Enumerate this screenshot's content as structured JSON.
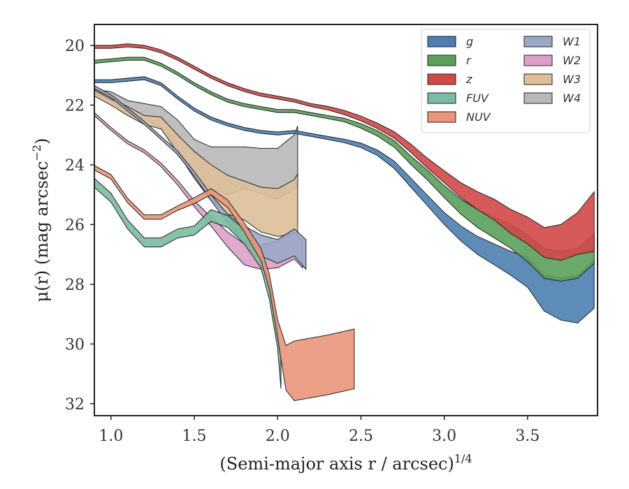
{
  "chart_data": {
    "type": "area",
    "xlabel": "(Semi-major axis r / arcsec)",
    "xlabel_sup": "1/4",
    "ylabel": "μ(r) (mag arcsec",
    "ylabel_sup": "−2",
    "ylabel_end": ")",
    "xlim": [
      0.9,
      3.92
    ],
    "ylim": [
      32.4,
      19.3
    ],
    "y_inverted": true,
    "x_ticks": [
      1.0,
      1.5,
      2.0,
      2.5,
      3.0,
      3.5
    ],
    "x_tick_labels": [
      "1.0",
      "1.5",
      "2.0",
      "2.5",
      "3.0",
      "3.5"
    ],
    "y_ticks": [
      20,
      22,
      24,
      26,
      28,
      30,
      32
    ],
    "y_tick_labels": [
      "20",
      "22",
      "24",
      "26",
      "28",
      "30",
      "32"
    ],
    "grid": false,
    "legend_position": "top-right",
    "legend_columns": 2,
    "series": [
      {
        "name": "g",
        "label": "g",
        "color": "#4c7fb0",
        "points": [
          [
            0.9,
            21.2
          ],
          [
            1.0,
            21.2
          ],
          [
            1.1,
            21.15
          ],
          [
            1.2,
            21.1
          ],
          [
            1.3,
            21.3
          ],
          [
            1.4,
            21.75
          ],
          [
            1.5,
            22.15
          ],
          [
            1.6,
            22.45
          ],
          [
            1.7,
            22.65
          ],
          [
            1.8,
            22.8
          ],
          [
            1.9,
            22.9
          ],
          [
            2.0,
            22.95
          ],
          [
            2.1,
            22.9
          ],
          [
            2.2,
            23.0
          ],
          [
            2.3,
            23.1
          ],
          [
            2.4,
            23.2
          ],
          [
            2.5,
            23.35
          ],
          [
            2.6,
            23.6
          ],
          [
            2.7,
            24.0
          ],
          [
            2.8,
            24.6
          ],
          [
            2.9,
            25.2
          ],
          [
            3.0,
            25.8
          ],
          [
            3.1,
            26.3
          ],
          [
            3.2,
            26.7
          ],
          [
            3.3,
            27.0
          ],
          [
            3.4,
            27.3
          ],
          [
            3.5,
            27.6
          ],
          [
            3.6,
            28.3
          ],
          [
            3.7,
            28.5
          ],
          [
            3.8,
            28.5
          ],
          [
            3.9,
            28.0
          ]
        ],
        "width": [
          0.1,
          0.1,
          0.1,
          0.1,
          0.1,
          0.1,
          0.1,
          0.1,
          0.1,
          0.1,
          0.1,
          0.1,
          0.1,
          0.1,
          0.1,
          0.12,
          0.15,
          0.18,
          0.25,
          0.3,
          0.35,
          0.4,
          0.5,
          0.6,
          0.7,
          0.8,
          1.0,
          1.2,
          1.4,
          1.6,
          1.6
        ]
      },
      {
        "name": "r",
        "label": "r",
        "color": "#5aa05a",
        "points": [
          [
            0.9,
            20.55
          ],
          [
            1.0,
            20.5
          ],
          [
            1.1,
            20.45
          ],
          [
            1.2,
            20.45
          ],
          [
            1.3,
            20.65
          ],
          [
            1.4,
            20.95
          ],
          [
            1.5,
            21.3
          ],
          [
            1.6,
            21.6
          ],
          [
            1.7,
            21.85
          ],
          [
            1.8,
            22.0
          ],
          [
            1.9,
            22.1
          ],
          [
            2.0,
            22.2
          ],
          [
            2.1,
            22.2
          ],
          [
            2.2,
            22.3
          ],
          [
            2.3,
            22.4
          ],
          [
            2.4,
            22.5
          ],
          [
            2.5,
            22.7
          ],
          [
            2.6,
            22.95
          ],
          [
            2.7,
            23.3
          ],
          [
            2.8,
            23.85
          ],
          [
            2.9,
            24.35
          ],
          [
            3.0,
            24.9
          ],
          [
            3.1,
            25.4
          ],
          [
            3.2,
            25.8
          ],
          [
            3.3,
            26.1
          ],
          [
            3.4,
            26.4
          ],
          [
            3.5,
            26.8
          ],
          [
            3.6,
            27.3
          ],
          [
            3.7,
            27.4
          ],
          [
            3.8,
            27.3
          ],
          [
            3.9,
            26.8
          ]
        ],
        "width": [
          0.1,
          0.1,
          0.1,
          0.1,
          0.1,
          0.1,
          0.1,
          0.1,
          0.1,
          0.1,
          0.1,
          0.1,
          0.1,
          0.1,
          0.1,
          0.12,
          0.15,
          0.18,
          0.22,
          0.28,
          0.33,
          0.4,
          0.5,
          0.6,
          0.7,
          0.8,
          0.9,
          1.0,
          1.0,
          1.0,
          1.0
        ]
      },
      {
        "name": "z",
        "label": "z",
        "color": "#d14848",
        "points": [
          [
            0.9,
            20.05
          ],
          [
            1.0,
            20.05
          ],
          [
            1.1,
            20.0
          ],
          [
            1.2,
            20.05
          ],
          [
            1.3,
            20.2
          ],
          [
            1.4,
            20.45
          ],
          [
            1.5,
            20.75
          ],
          [
            1.6,
            21.05
          ],
          [
            1.7,
            21.3
          ],
          [
            1.8,
            21.5
          ],
          [
            1.9,
            21.65
          ],
          [
            2.0,
            21.75
          ],
          [
            2.1,
            21.85
          ],
          [
            2.2,
            22.0
          ],
          [
            2.3,
            22.1
          ],
          [
            2.4,
            22.25
          ],
          [
            2.5,
            22.45
          ],
          [
            2.6,
            22.7
          ],
          [
            2.7,
            23.0
          ],
          [
            2.8,
            23.45
          ],
          [
            2.9,
            23.95
          ],
          [
            3.0,
            24.4
          ],
          [
            3.1,
            24.85
          ],
          [
            3.2,
            25.2
          ],
          [
            3.3,
            25.5
          ],
          [
            3.4,
            25.9
          ],
          [
            3.5,
            26.2
          ],
          [
            3.6,
            26.6
          ],
          [
            3.7,
            26.6
          ],
          [
            3.8,
            26.3
          ],
          [
            3.9,
            25.9
          ]
        ],
        "width": [
          0.1,
          0.1,
          0.1,
          0.1,
          0.1,
          0.1,
          0.1,
          0.1,
          0.1,
          0.1,
          0.1,
          0.1,
          0.1,
          0.1,
          0.12,
          0.14,
          0.16,
          0.18,
          0.22,
          0.28,
          0.33,
          0.4,
          0.5,
          0.6,
          0.7,
          0.8,
          0.9,
          1.0,
          1.2,
          1.4,
          2.0
        ]
      },
      {
        "name": "FUV",
        "label": "FUV",
        "color": "#7bbba0",
        "points": [
          [
            0.9,
            24.6
          ],
          [
            1.0,
            25.1
          ],
          [
            1.1,
            26.0
          ],
          [
            1.2,
            26.6
          ],
          [
            1.3,
            26.6
          ],
          [
            1.4,
            26.3
          ],
          [
            1.5,
            26.2
          ],
          [
            1.6,
            25.7
          ],
          [
            1.7,
            25.9
          ],
          [
            1.8,
            26.4
          ],
          [
            1.9,
            27.2
          ],
          [
            1.95,
            28.2
          ],
          [
            2.0,
            29.8
          ],
          [
            2.02,
            31.0
          ]
        ],
        "width": [
          0.3,
          0.3,
          0.3,
          0.3,
          0.3,
          0.3,
          0.3,
          0.4,
          0.4,
          0.5,
          0.5,
          0.6,
          0.7,
          1.0
        ]
      },
      {
        "name": "NUV",
        "label": "NUV",
        "color": "#e9967a",
        "points": [
          [
            0.9,
            24.1
          ],
          [
            1.0,
            24.4
          ],
          [
            1.1,
            25.2
          ],
          [
            1.2,
            25.75
          ],
          [
            1.3,
            25.75
          ],
          [
            1.4,
            25.45
          ],
          [
            1.5,
            25.2
          ],
          [
            1.6,
            24.9
          ],
          [
            1.7,
            25.3
          ],
          [
            1.8,
            26.1
          ],
          [
            1.9,
            27.0
          ],
          [
            1.95,
            27.9
          ],
          [
            2.0,
            29.5
          ],
          [
            2.05,
            30.8
          ],
          [
            2.1,
            30.9
          ],
          [
            2.3,
            30.7
          ],
          [
            2.46,
            30.5
          ]
        ],
        "width": [
          0.15,
          0.15,
          0.15,
          0.15,
          0.15,
          0.15,
          0.2,
          0.2,
          0.25,
          0.3,
          0.4,
          0.5,
          0.6,
          1.5,
          2.0,
          2.0,
          2.0
        ]
      },
      {
        "name": "W1",
        "label": "W1",
        "color": "#9aa8c8",
        "points": [
          [
            0.9,
            21.4
          ],
          [
            1.0,
            21.7
          ],
          [
            1.1,
            22.15
          ],
          [
            1.2,
            22.6
          ],
          [
            1.3,
            23.1
          ],
          [
            1.4,
            23.6
          ],
          [
            1.5,
            24.3
          ],
          [
            1.6,
            25.1
          ],
          [
            1.7,
            25.8
          ],
          [
            1.8,
            26.3
          ],
          [
            1.9,
            26.7
          ],
          [
            2.0,
            26.9
          ],
          [
            2.1,
            26.6
          ],
          [
            2.17,
            27.0
          ]
        ],
        "width": [
          0.1,
          0.1,
          0.1,
          0.1,
          0.1,
          0.12,
          0.15,
          0.2,
          0.3,
          0.5,
          0.7,
          0.8,
          0.9,
          1.0
        ]
      },
      {
        "name": "W2",
        "label": "W2",
        "color": "#dda0c8",
        "points": [
          [
            0.9,
            22.3
          ],
          [
            1.0,
            22.8
          ],
          [
            1.1,
            23.25
          ],
          [
            1.2,
            23.55
          ],
          [
            1.3,
            24.0
          ],
          [
            1.4,
            24.6
          ],
          [
            1.5,
            25.3
          ],
          [
            1.6,
            25.9
          ],
          [
            1.7,
            26.5
          ],
          [
            1.8,
            27.0
          ],
          [
            1.9,
            27.1
          ],
          [
            2.0,
            27.0
          ],
          [
            2.1,
            26.7
          ],
          [
            2.15,
            27.0
          ]
        ],
        "width": [
          0.1,
          0.1,
          0.1,
          0.1,
          0.12,
          0.15,
          0.2,
          0.3,
          0.5,
          0.7,
          0.8,
          0.9,
          0.9,
          0.9
        ]
      },
      {
        "name": "W3",
        "label": "W3",
        "color": "#ddbf9a",
        "points": [
          [
            0.9,
            21.6
          ],
          [
            1.0,
            21.9
          ],
          [
            1.1,
            22.2
          ],
          [
            1.2,
            22.5
          ],
          [
            1.3,
            22.6
          ],
          [
            1.4,
            23.3
          ],
          [
            1.5,
            24.0
          ],
          [
            1.6,
            24.6
          ],
          [
            1.7,
            25.0
          ],
          [
            1.8,
            25.2
          ],
          [
            1.9,
            25.5
          ],
          [
            2.0,
            25.6
          ],
          [
            2.1,
            25.4
          ],
          [
            2.12,
            25.3
          ]
        ],
        "width": [
          0.2,
          0.2,
          0.3,
          0.3,
          0.4,
          0.6,
          0.9,
          1.2,
          1.3,
          1.3,
          1.5,
          1.6,
          1.8,
          2.0
        ]
      },
      {
        "name": "W4",
        "label": "W4",
        "color": "#b8b8b8",
        "points": [
          [
            0.9,
            21.55
          ],
          [
            1.0,
            21.7
          ],
          [
            1.1,
            22.1
          ],
          [
            1.2,
            22.2
          ],
          [
            1.3,
            22.4
          ],
          [
            1.4,
            23.0
          ],
          [
            1.5,
            23.8
          ],
          [
            1.6,
            24.1
          ],
          [
            1.7,
            24.2
          ],
          [
            1.8,
            24.1
          ],
          [
            1.9,
            24.2
          ],
          [
            2.0,
            24.3
          ],
          [
            2.1,
            23.9
          ],
          [
            2.12,
            23.7
          ]
        ],
        "width": [
          0.15,
          0.3,
          0.5,
          0.5,
          0.7,
          1.0,
          1.3,
          1.4,
          1.6,
          1.4,
          1.5,
          1.7,
          1.8,
          2.0
        ]
      }
    ]
  }
}
